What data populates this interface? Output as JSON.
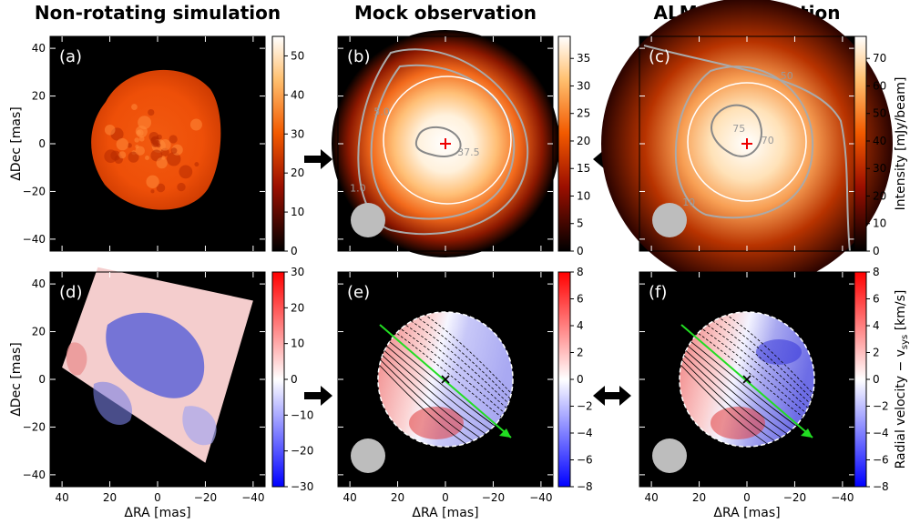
{
  "columns": [
    {
      "title": "Non-rotating simulation"
    },
    {
      "title": "Mock observation"
    },
    {
      "title": "ALMA observation"
    }
  ],
  "axes": {
    "xlabel": "ΔRA [mas]",
    "ylabel": "ΔDec [mas]",
    "xticks": [
      40,
      20,
      0,
      -20,
      -40
    ],
    "yticks": [
      40,
      20,
      0,
      -20,
      -40
    ],
    "xlim": [
      45,
      -45
    ],
    "ylim": [
      -45,
      45
    ]
  },
  "chart_data": [
    {
      "type": "heatmap",
      "label": "(a)",
      "colormap": "hot",
      "colorbar": {
        "ticks": [
          0,
          10,
          20,
          30,
          40,
          50
        ],
        "range": [
          0,
          55
        ],
        "label": ""
      }
    },
    {
      "type": "heatmap",
      "label": "(b)",
      "colormap": "hot",
      "colorbar": {
        "ticks": [
          0,
          5,
          10,
          15,
          20,
          25,
          30,
          35
        ],
        "range": [
          0,
          39
        ],
        "label": ""
      },
      "contour_labels": [
        {
          "text": "5.0",
          "x": 30,
          "y": 12
        },
        {
          "text": "37.5",
          "x": -5,
          "y": -5
        },
        {
          "text": "1.0",
          "x": 40,
          "y": -20
        }
      ]
    },
    {
      "type": "heatmap",
      "label": "(c)",
      "colormap": "hot",
      "colorbar": {
        "ticks": [
          0,
          10,
          20,
          30,
          40,
          50,
          60,
          70
        ],
        "range": [
          0,
          78
        ],
        "label": "Intensity [mJy/beam]"
      },
      "contour_labels": [
        {
          "text": "50",
          "x": -14,
          "y": 27
        },
        {
          "text": "75",
          "x": 6,
          "y": 5
        },
        {
          "text": "70",
          "x": -6,
          "y": 0
        },
        {
          "text": "10",
          "x": 27,
          "y": -26
        }
      ]
    },
    {
      "type": "heatmap",
      "label": "(d)",
      "colormap": "bwr",
      "colorbar": {
        "ticks": [
          30,
          20,
          10,
          0,
          -10,
          -20,
          -30
        ],
        "range": [
          -30,
          30
        ],
        "label": ""
      }
    },
    {
      "type": "heatmap",
      "label": "(e)",
      "colormap": "bwr",
      "colorbar": {
        "ticks": [
          8,
          6,
          4,
          2,
          0,
          -2,
          -4,
          -6,
          -8
        ],
        "range": [
          -8,
          8
        ],
        "label": ""
      }
    },
    {
      "type": "heatmap",
      "label": "(f)",
      "colormap": "bwr",
      "colorbar": {
        "ticks": [
          8,
          6,
          4,
          2,
          0,
          -2,
          -4,
          -6,
          -8
        ],
        "range": [
          -8,
          8
        ],
        "label": "Radial velocity − v_sys [km/s]"
      }
    }
  ]
}
